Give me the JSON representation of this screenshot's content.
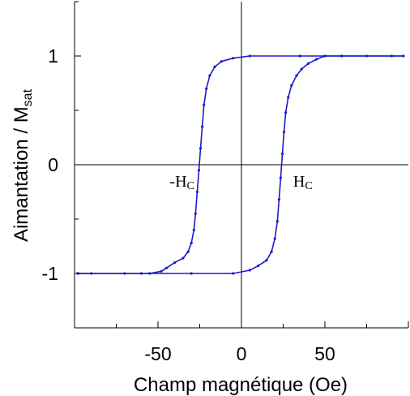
{
  "chart_data": {
    "type": "line",
    "title": "",
    "xlabel": "Champ magnétique (Oe)",
    "ylabel_main": "Aimantation / M",
    "ylabel_sub": "sat",
    "xlim": [
      -100,
      100
    ],
    "ylim": [
      -1.5,
      1.5
    ],
    "x_ticks": [
      -50,
      0,
      50
    ],
    "x_tick_labels": [
      "-50",
      "0",
      "50"
    ],
    "y_ticks": [
      1,
      0,
      -1
    ],
    "y_tick_labels": [
      "1",
      "0",
      "-1"
    ],
    "grid": false,
    "zero_lines": true,
    "line_color": "#1c1cc8",
    "series": [
      {
        "branch": "descending",
        "x": [
          97,
          60,
          35,
          5,
          -5,
          -12,
          -16,
          -19,
          -21,
          -22.5,
          -23.5,
          -24.5,
          -25.5,
          -26.5,
          -27.5,
          -28.5,
          -30,
          -32,
          -35,
          -40,
          -45,
          -48,
          -55,
          -70,
          -90,
          -98
        ],
        "y": [
          1.0,
          1.0,
          1.0,
          1.0,
          0.98,
          0.95,
          0.9,
          0.82,
          0.7,
          0.55,
          0.35,
          0.15,
          -0.05,
          -0.25,
          -0.45,
          -0.6,
          -0.72,
          -0.8,
          -0.86,
          -0.9,
          -0.95,
          -0.98,
          -1.0,
          -1.0,
          -1.0,
          -1.0
        ]
      },
      {
        "branch": "ascending",
        "x": [
          -98,
          -60,
          -30,
          -5,
          5,
          10,
          15,
          18,
          20,
          21.5,
          22.5,
          23.5,
          24.5,
          25.5,
          26.5,
          28,
          30,
          33,
          36,
          40,
          45,
          50,
          60,
          75,
          90,
          97
        ],
        "y": [
          -1.0,
          -1.0,
          -1.0,
          -1.0,
          -0.97,
          -0.93,
          -0.88,
          -0.8,
          -0.68,
          -0.52,
          -0.32,
          -0.12,
          0.1,
          0.3,
          0.48,
          0.62,
          0.73,
          0.82,
          0.88,
          0.93,
          0.97,
          1.0,
          1.0,
          1.0,
          1.0,
          1.0
        ]
      }
    ],
    "annotations": [
      {
        "main": "-H",
        "sub": "C",
        "x": -43,
        "y": -0.2
      },
      {
        "main": "H",
        "sub": "C",
        "x": 31,
        "y": -0.2
      }
    ]
  }
}
